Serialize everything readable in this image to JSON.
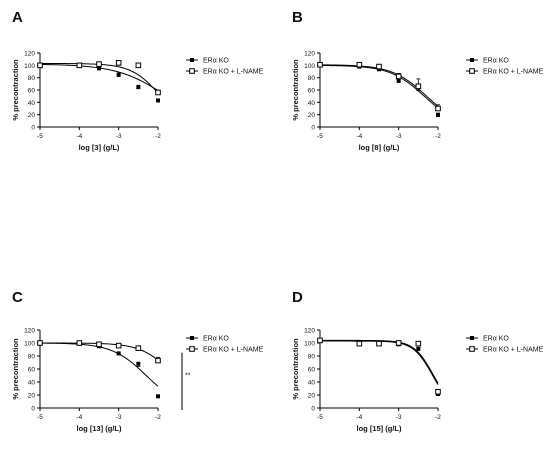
{
  "chart_data": [
    {
      "type": "scatter",
      "panel_label": "A",
      "xlabel": "log [3] (g/L)",
      "ylabel": "% precontraction",
      "xlim": [
        -5,
        -2
      ],
      "ylim": [
        0,
        120
      ],
      "x_ticks": [
        -5,
        -4,
        -3,
        -2
      ],
      "y_ticks": [
        0,
        20,
        40,
        60,
        80,
        100,
        120
      ],
      "x_tick_labels": [
        "-5",
        "-4",
        "-3",
        "-2"
      ],
      "y_tick_labels": [
        "0",
        "20",
        "40",
        "60",
        "80",
        "100",
        "120"
      ],
      "grid": false,
      "legend_position": "right",
      "series": [
        {
          "name": "ERα KO",
          "marker": "filled-square",
          "x": [
            -5,
            -4,
            -3.5,
            -3,
            -2.5,
            -2
          ],
          "y": [
            100,
            99,
            95,
            85,
            65,
            43
          ],
          "error": [
            1,
            1,
            2,
            3,
            3,
            2
          ],
          "fit": {
            "top": 102,
            "bottom": 0,
            "logec50": -1.8,
            "hill": -0.7
          }
        },
        {
          "name": "ERα KO + L-NAME",
          "marker": "open-square",
          "x": [
            -5,
            -4,
            -3.5,
            -3,
            -2.5,
            -2
          ],
          "y": [
            100,
            100,
            102,
            104,
            100,
            56
          ],
          "error": [
            1,
            1,
            2,
            3,
            3,
            4
          ],
          "fit": {
            "top": 103,
            "bottom": 0,
            "logec50": -1.95,
            "hill": -1.2
          }
        }
      ],
      "annotation": ""
    },
    {
      "type": "scatter",
      "panel_label": "B",
      "xlabel": "log [8] (g/L)",
      "ylabel": "% precontraction",
      "xlim": [
        -5,
        -2
      ],
      "ylim": [
        0,
        120
      ],
      "x_ticks": [
        -5,
        -4,
        -3,
        -2
      ],
      "y_ticks": [
        0,
        20,
        40,
        60,
        80,
        100,
        120
      ],
      "x_tick_labels": [
        "-5",
        "-4",
        "-3",
        "-2"
      ],
      "y_tick_labels": [
        "0",
        "20",
        "40",
        "60",
        "80",
        "100",
        "120"
      ],
      "grid": false,
      "legend_position": "right",
      "series": [
        {
          "name": "ERα KO",
          "marker": "filled-square",
          "x": [
            -5,
            -4,
            -3.5,
            -3,
            -2.5,
            -2
          ],
          "y": [
            100,
            98,
            94,
            76,
            65,
            20
          ],
          "error": [
            1,
            2,
            3,
            4,
            6,
            3
          ],
          "fit": {
            "top": 100,
            "bottom": 0,
            "logec50": -2.35,
            "hill": -1.0
          }
        },
        {
          "name": "ERα KO + L-NAME",
          "marker": "open-square",
          "x": [
            -5,
            -4,
            -3.5,
            -3,
            -2.5,
            -2
          ],
          "y": [
            101,
            101,
            98,
            82,
            66,
            30
          ],
          "error": [
            1,
            2,
            3,
            5,
            12,
            6
          ],
          "fit": {
            "top": 101,
            "bottom": 0,
            "logec50": -2.3,
            "hill": -1.0
          }
        }
      ],
      "annotation": ""
    },
    {
      "type": "scatter",
      "panel_label": "C",
      "xlabel": "log [13] (g/L)",
      "ylabel": "% precontraction",
      "xlim": [
        -5,
        -2
      ],
      "ylim": [
        0,
        120
      ],
      "x_ticks": [
        -5,
        -4,
        -3,
        -2
      ],
      "y_ticks": [
        0,
        20,
        40,
        60,
        80,
        100,
        120
      ],
      "x_tick_labels": [
        "-5",
        "-4",
        "-3",
        "-2"
      ],
      "y_tick_labels": [
        "0",
        "20",
        "40",
        "60",
        "80",
        "100",
        "120"
      ],
      "grid": false,
      "legend_position": "right",
      "series": [
        {
          "name": "ERα KO",
          "marker": "filled-square",
          "x": [
            -5,
            -4,
            -3.5,
            -3,
            -2.5,
            -2
          ],
          "y": [
            100,
            99,
            95,
            84,
            68,
            18
          ],
          "error": [
            1,
            1,
            2,
            2,
            4,
            2
          ],
          "fit": {
            "top": 100,
            "bottom": 0,
            "logec50": -2.3,
            "hill": -1.0
          }
        },
        {
          "name": "ERα KO + L-NAME",
          "marker": "open-square",
          "x": [
            -5,
            -4,
            -3.5,
            -3,
            -2.5,
            -2
          ],
          "y": [
            100,
            100,
            98,
            96,
            92,
            73
          ],
          "error": [
            1,
            1,
            1,
            2,
            2,
            5
          ],
          "fit": {
            "top": 100,
            "bottom": 0,
            "logec50": -1.6,
            "hill": -1.1
          }
        }
      ],
      "annotation": "**"
    },
    {
      "type": "scatter",
      "panel_label": "D",
      "xlabel": "log [15] (g/L)",
      "ylabel": "% precontraction",
      "xlim": [
        -5,
        -2
      ],
      "ylim": [
        0,
        120
      ],
      "x_ticks": [
        -5,
        -4,
        -3,
        -2
      ],
      "y_ticks": [
        0,
        20,
        40,
        60,
        80,
        100,
        120
      ],
      "x_tick_labels": [
        "-5",
        "-4",
        "-3",
        "-2"
      ],
      "y_tick_labels": [
        "0",
        "20",
        "40",
        "60",
        "80",
        "100",
        "120"
      ],
      "grid": false,
      "legend_position": "right",
      "series": [
        {
          "name": "ERα KO",
          "marker": "filled-square",
          "x": [
            -5,
            -4,
            -3.5,
            -3,
            -2.5,
            -2
          ],
          "y": [
            104,
            100,
            99,
            98,
            91,
            22
          ],
          "error": [
            1,
            1,
            1,
            2,
            2,
            3
          ],
          "fit": {
            "top": 103,
            "bottom": 0,
            "logec50": -2.15,
            "hill": -1.8
          }
        },
        {
          "name": "ERα KO + L-NAME",
          "marker": "open-square",
          "x": [
            -5,
            -4,
            -3.5,
            -3,
            -2.5,
            -2
          ],
          "y": [
            104,
            99,
            99,
            100,
            99,
            25
          ],
          "error": [
            1,
            1,
            1,
            2,
            2,
            3
          ],
          "fit": {
            "top": 104,
            "bottom": 0,
            "logec50": -2.13,
            "hill": -1.8
          }
        }
      ],
      "annotation": ""
    }
  ]
}
